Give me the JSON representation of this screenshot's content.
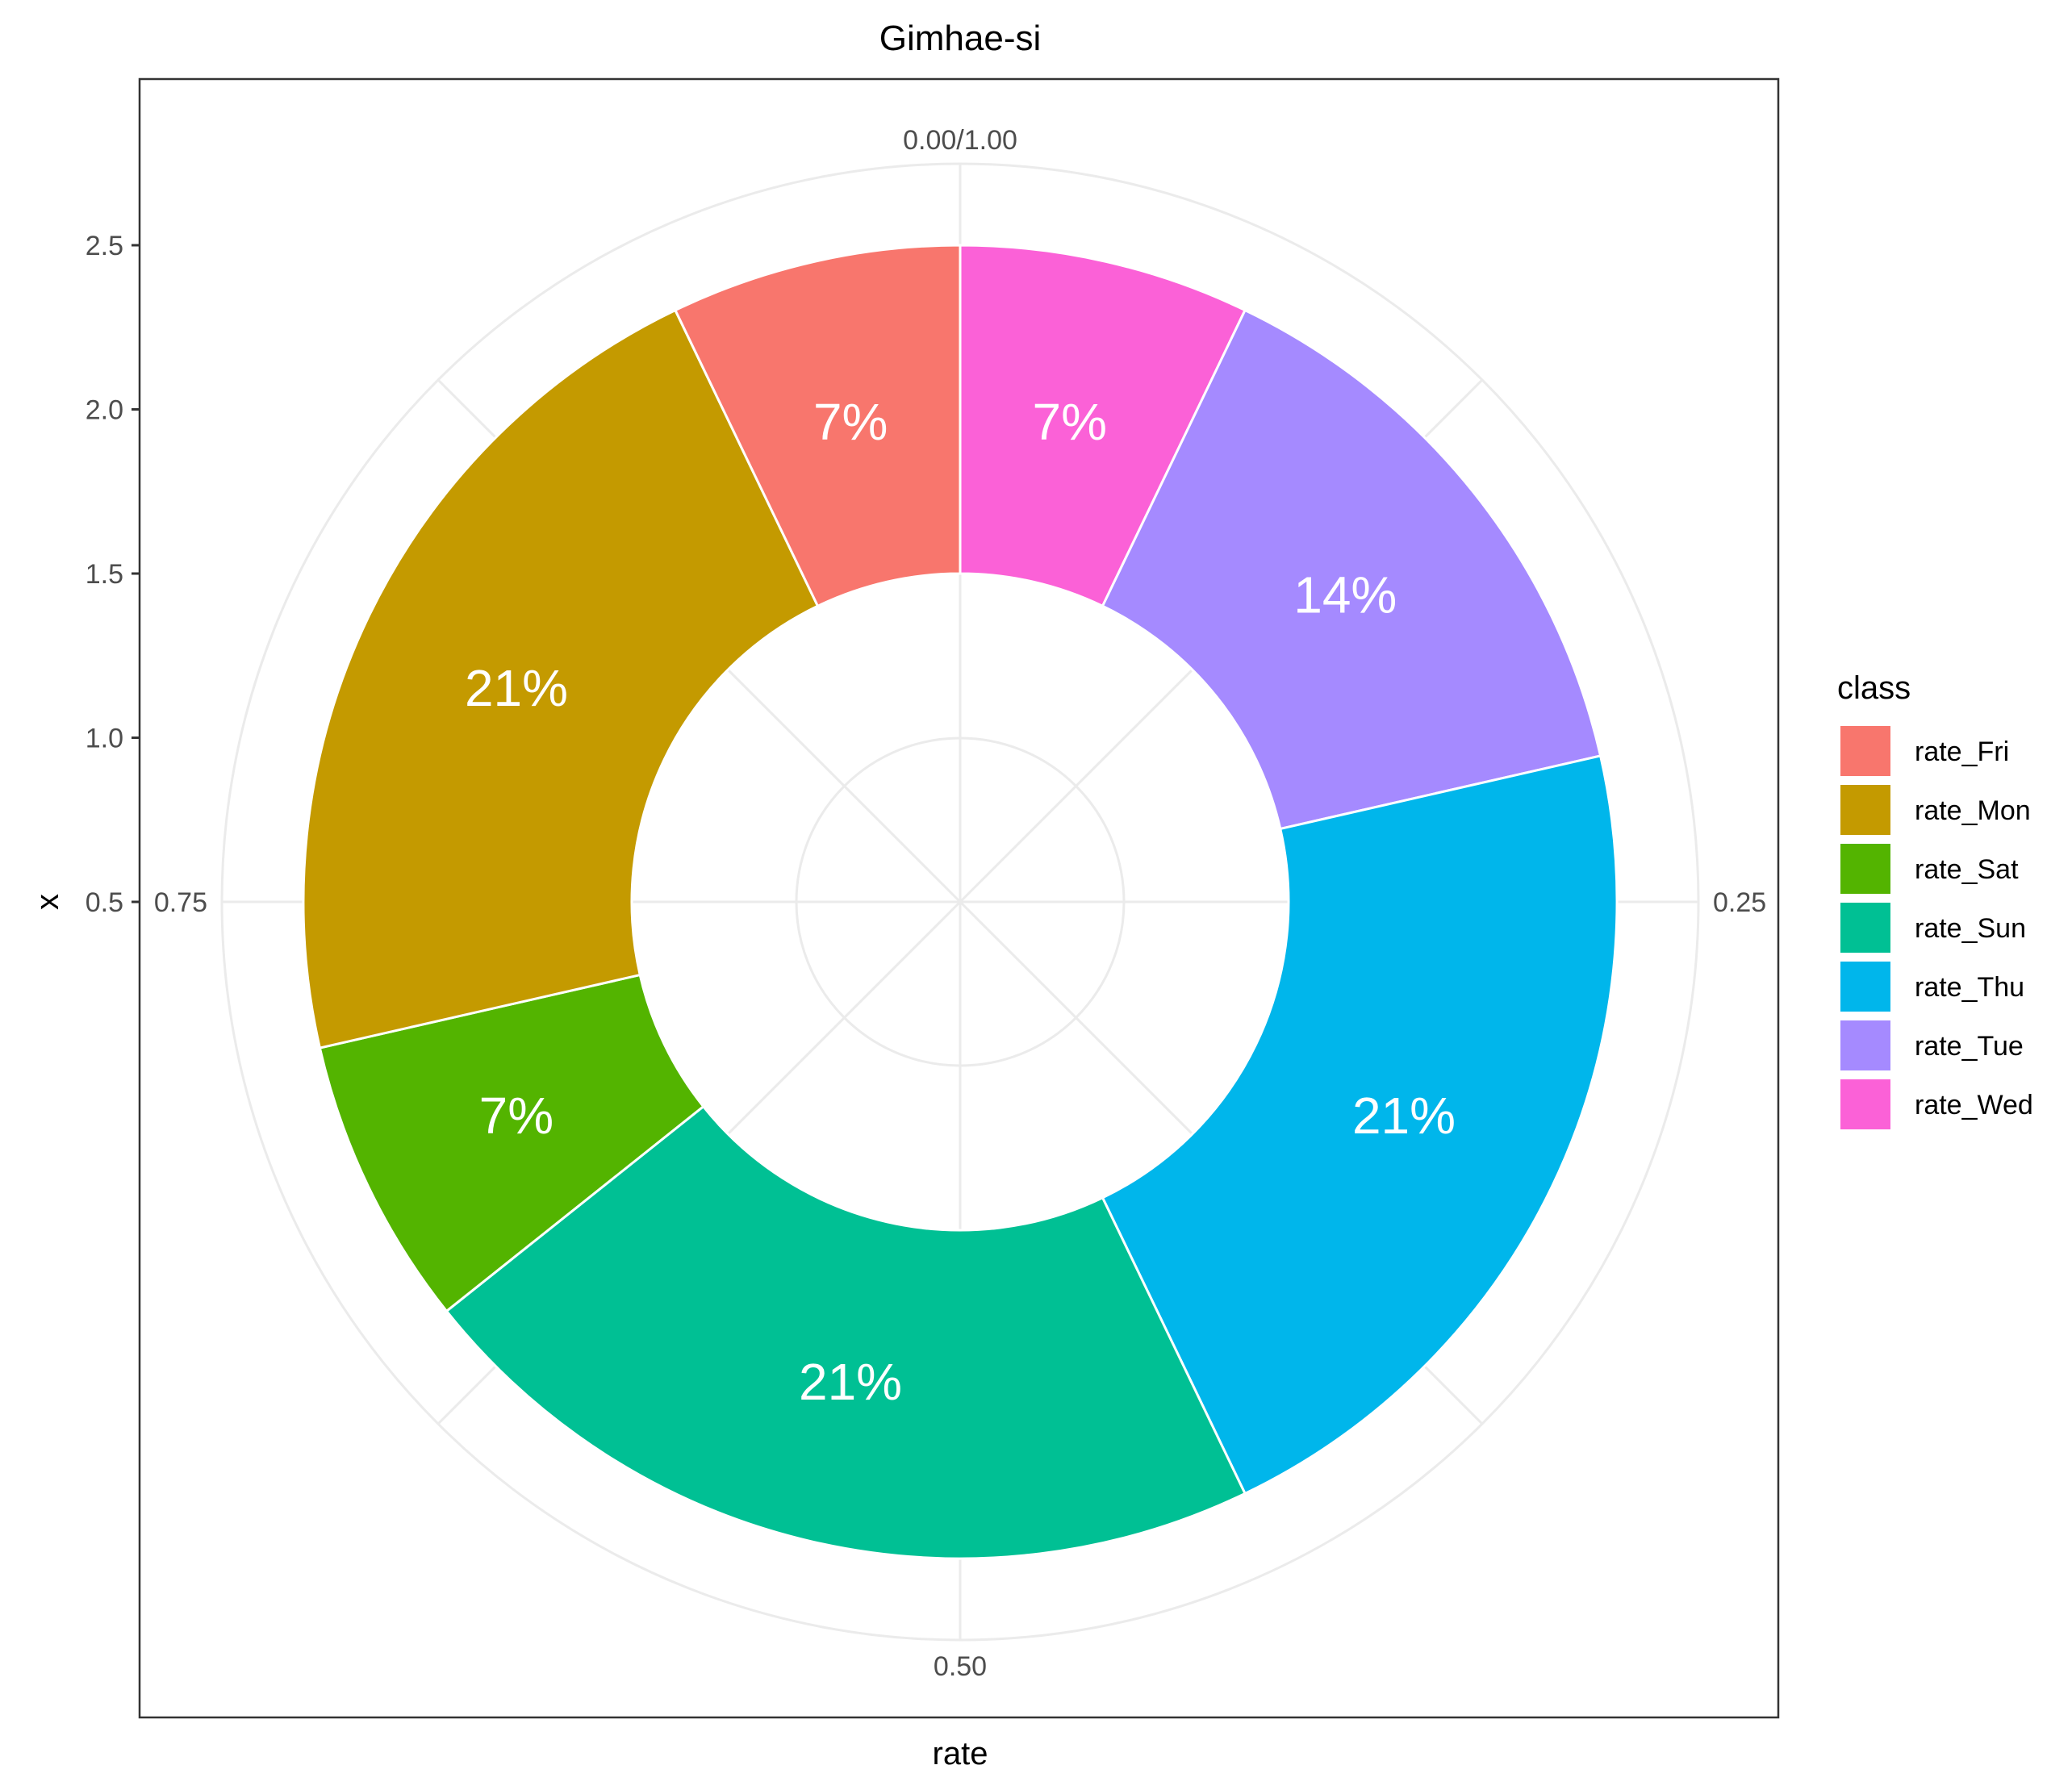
{
  "chart_data": {
    "type": "pie",
    "subtype": "donut (polar coordinates, theta = rate, x = ring position)",
    "title": "Gimhae-si",
    "xlabel": "rate",
    "ylabel": "x",
    "y_ticks": [
      "0.5",
      "1.0",
      "1.5",
      "2.0",
      "2.5"
    ],
    "angle_ticks": [
      "0.00/1.00",
      "0.25",
      "0.50",
      "0.75"
    ],
    "legend": {
      "title": "class",
      "position": "right"
    },
    "grid": true,
    "slices": [
      {
        "name": "rate_Wed",
        "value": 0.0714,
        "label": "7%",
        "color": "#FB61D7"
      },
      {
        "name": "rate_Tue",
        "value": 0.1429,
        "label": "14%",
        "color": "#A58AFF"
      },
      {
        "name": "rate_Thu",
        "value": 0.2143,
        "label": "21%",
        "color": "#00B6EB"
      },
      {
        "name": "rate_Sun",
        "value": 0.2143,
        "label": "21%",
        "color": "#00C094"
      },
      {
        "name": "rate_Sat",
        "value": 0.0714,
        "label": "7%",
        "color": "#53B400"
      },
      {
        "name": "rate_Mon",
        "value": 0.2143,
        "label": "21%",
        "color": "#C49A00"
      },
      {
        "name": "rate_Fri",
        "value": 0.0714,
        "label": "7%",
        "color": "#F8766D"
      }
    ],
    "legend_order": [
      "rate_Fri",
      "rate_Mon",
      "rate_Sat",
      "rate_Sun",
      "rate_Thu",
      "rate_Tue",
      "rate_Wed"
    ]
  }
}
